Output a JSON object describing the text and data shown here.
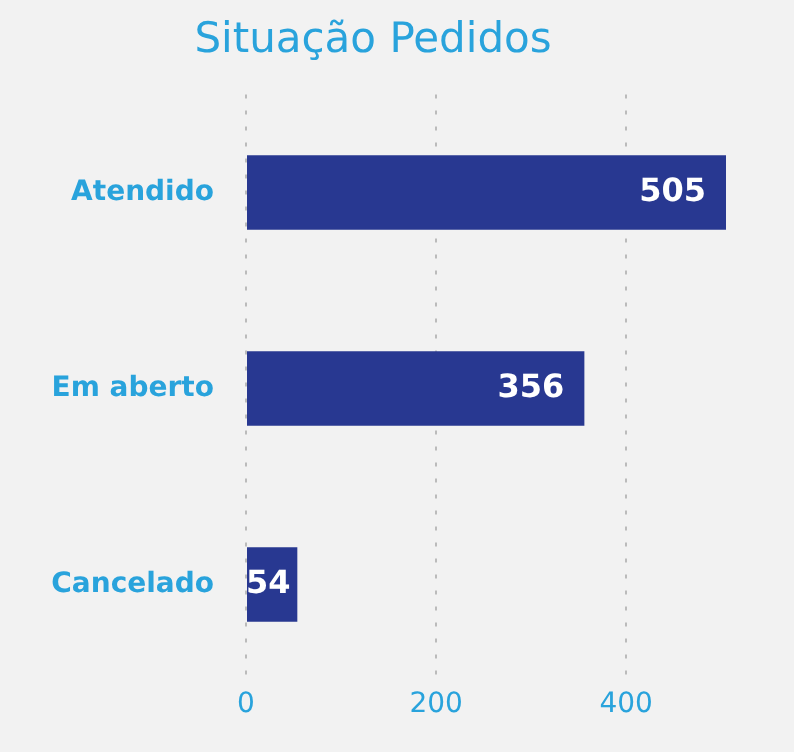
{
  "chart_data": {
    "type": "bar",
    "orientation": "horizontal",
    "title": "Situação Pedidos",
    "categories": [
      "Atendido",
      "Em aberto",
      "Cancelado"
    ],
    "values": [
      505,
      356,
      54
    ],
    "color": "#283891",
    "xlim": [
      0,
      505
    ],
    "xticks": [
      0,
      200,
      400
    ],
    "grid": "x",
    "data_labels": true
  }
}
